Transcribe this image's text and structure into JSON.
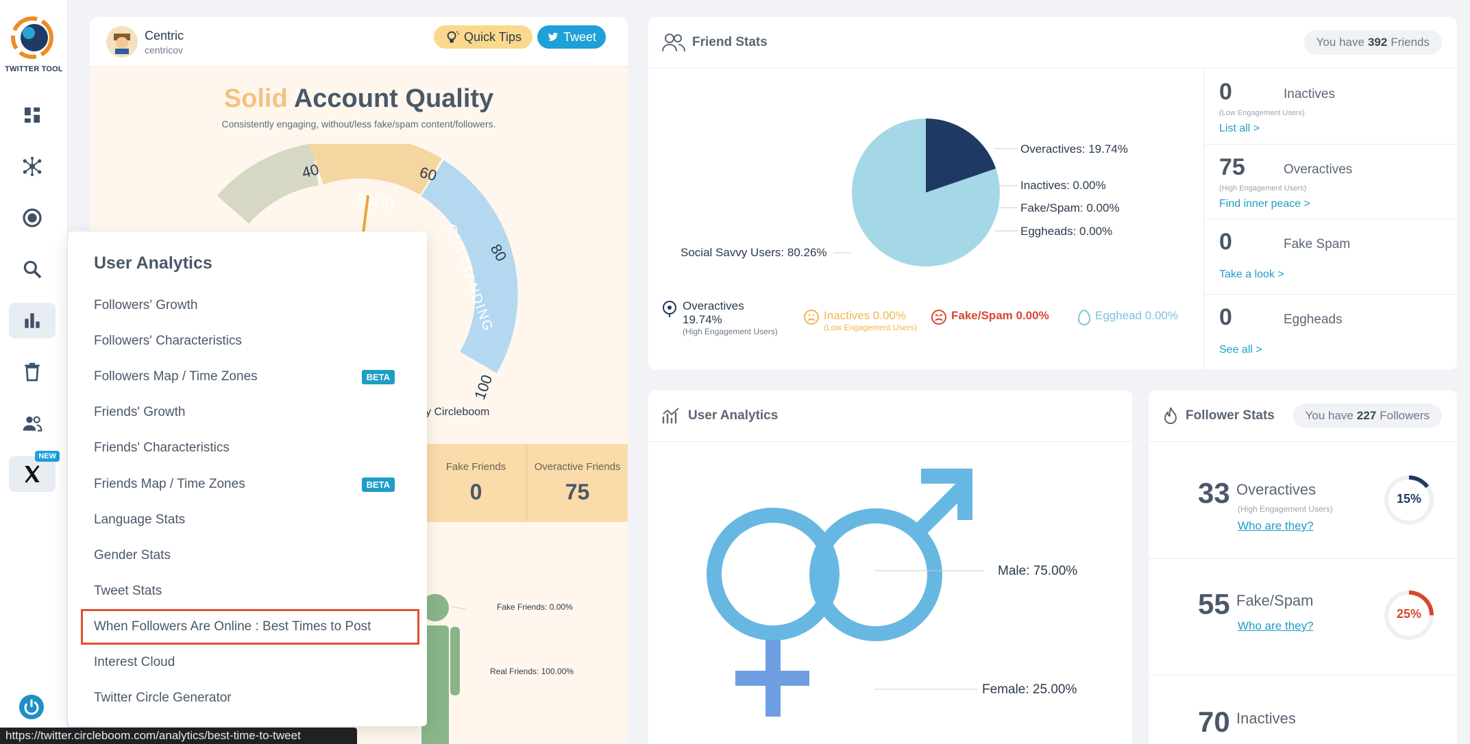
{
  "sidebar": {
    "brand": "TWITTER TOOL",
    "new_badge": "NEW",
    "items": [
      {
        "name": "dashboard"
      },
      {
        "name": "network"
      },
      {
        "name": "target"
      },
      {
        "name": "search"
      },
      {
        "name": "analytics"
      },
      {
        "name": "delete"
      },
      {
        "name": "users"
      },
      {
        "name": "x"
      }
    ]
  },
  "account": {
    "name": "Centric",
    "handle": "centricov",
    "quick_tips": "Quick Tips",
    "tweet": "Tweet"
  },
  "quality": {
    "title_highlight": "Solid",
    "title_rest": "Account Quality",
    "subtitle": "Consistently engaging, without/less fake/spam content/followers.",
    "ticks": [
      "40",
      "60",
      "80",
      "100"
    ],
    "segment_solid": "SOLID",
    "segment_outstanding": "OUTSTANDING",
    "powered_by": "y Circleboom",
    "score_value": 57,
    "stats": [
      {
        "label": "Fake Friends",
        "value": "0"
      },
      {
        "label": "Overactive Friends",
        "value": "75"
      }
    ],
    "person_labels": {
      "fake": "Fake Friends: 0.00%",
      "real": "Real Friends: 100.00%"
    }
  },
  "dropdown": {
    "title": "User Analytics",
    "beta_label": "BETA",
    "items": [
      {
        "label": "Followers' Growth"
      },
      {
        "label": "Followers' Characteristics"
      },
      {
        "label": "Followers Map / Time Zones",
        "beta": true
      },
      {
        "label": "Friends' Growth"
      },
      {
        "label": "Friends' Characteristics"
      },
      {
        "label": "Friends Map / Time Zones",
        "beta": true
      },
      {
        "label": "Language Stats"
      },
      {
        "label": "Gender Stats"
      },
      {
        "label": "Tweet Stats"
      },
      {
        "label": "When Followers Are Online : Best Times to Post",
        "highlighted": true
      },
      {
        "label": "Interest Cloud"
      },
      {
        "label": "Twitter Circle Generator"
      }
    ]
  },
  "friend_stats": {
    "title": "Friend Stats",
    "pill_prefix": "You have",
    "count": "392",
    "pill_suffix": "Friends",
    "pie": {
      "labels": {
        "overactives": "Overactives: 19.74%",
        "inactives": "Inactives: 0.00%",
        "fakespam": "Fake/Spam: 0.00%",
        "eggheads": "Eggheads: 0.00%",
        "social": "Social Savvy Users: 80.26%"
      },
      "overactives_pct": 19.74,
      "social_pct": 80.26
    },
    "legend": {
      "overactives": "Overactives",
      "overactives_pct": "19.74%",
      "overactives_sub": "(High Engagement Users)",
      "inactives": "Inactives 0.00%",
      "inactives_sub": "(Low Engagement Users)",
      "fakespam": "Fake/Spam 0.00%",
      "egghead": "Egghead 0.00%"
    },
    "side": [
      {
        "num": "0",
        "label": "Inactives",
        "sub": "(Low Engagement Users)",
        "link": "List all >"
      },
      {
        "num": "75",
        "label": "Overactives",
        "sub": "(High Engagement Users)",
        "link": "Find inner peace >"
      },
      {
        "num": "0",
        "label": "Fake Spam",
        "sub": "",
        "link": "Take a look >"
      },
      {
        "num": "0",
        "label": "Eggheads",
        "sub": "",
        "link": "See all >"
      }
    ]
  },
  "user_analytics": {
    "title": "User Analytics",
    "male": "Male: 75.00%",
    "female": "Female: 25.00%",
    "male_pct": 75,
    "female_pct": 25
  },
  "follower_stats": {
    "title": "Follower Stats",
    "pill_prefix": "You have",
    "count": "227",
    "pill_suffix": "Followers",
    "items": [
      {
        "num": "33",
        "label": "Overactives",
        "sub": "(High Engagement Users)",
        "link": "Who are they?",
        "pct": "15%",
        "pct_value": 15,
        "color": "#1f3b63"
      },
      {
        "num": "55",
        "label": "Fake/Spam",
        "sub": "",
        "link": "Who are they?",
        "pct": "25%",
        "pct_value": 25,
        "color": "#d8452f"
      },
      {
        "num": "70",
        "label": "Inactives"
      }
    ]
  },
  "statusbar": {
    "url": "https://twitter.circleboom.com/analytics/best-time-to-tweet"
  }
}
